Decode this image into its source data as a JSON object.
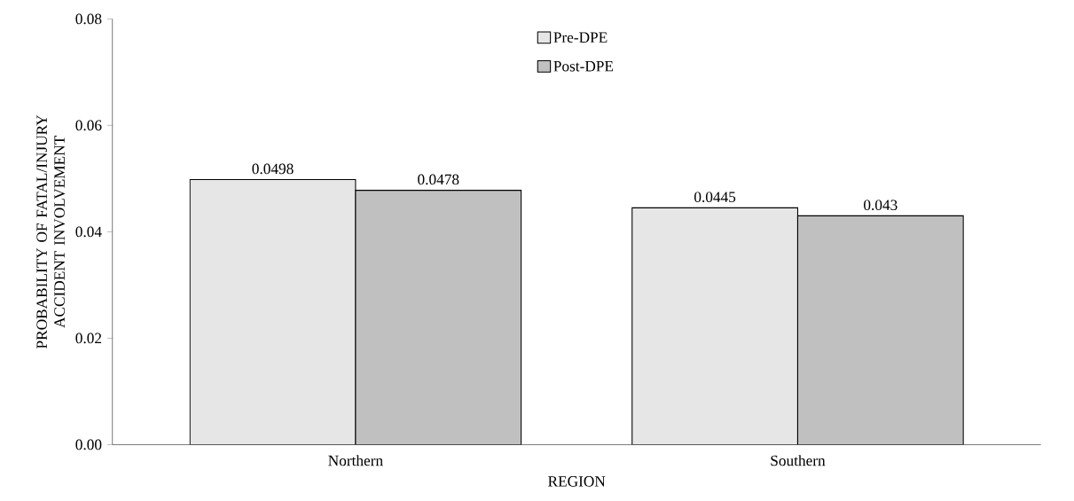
{
  "chart_data": {
    "type": "bar",
    "xlabel": "REGION",
    "ylabel": "PROBABILITY OF FATAL/INJURY ACCIDENT INVOLVEMENT",
    "categories": [
      "Northern",
      "Southern"
    ],
    "series": [
      {
        "name": "Pre-DPE",
        "color": "#e6e6e6",
        "values": [
          0.0498,
          0.0445
        ]
      },
      {
        "name": "Post-DPE",
        "color": "#c0c0c0",
        "values": [
          0.0478,
          0.043
        ]
      }
    ],
    "ylim": [
      0,
      0.08
    ],
    "yticks": [
      {
        "value": 0,
        "label": "0.00"
      },
      0.02,
      0.04,
      0.06,
      0.08
    ],
    "data_labels": true,
    "legend": "top",
    "grid": false
  }
}
